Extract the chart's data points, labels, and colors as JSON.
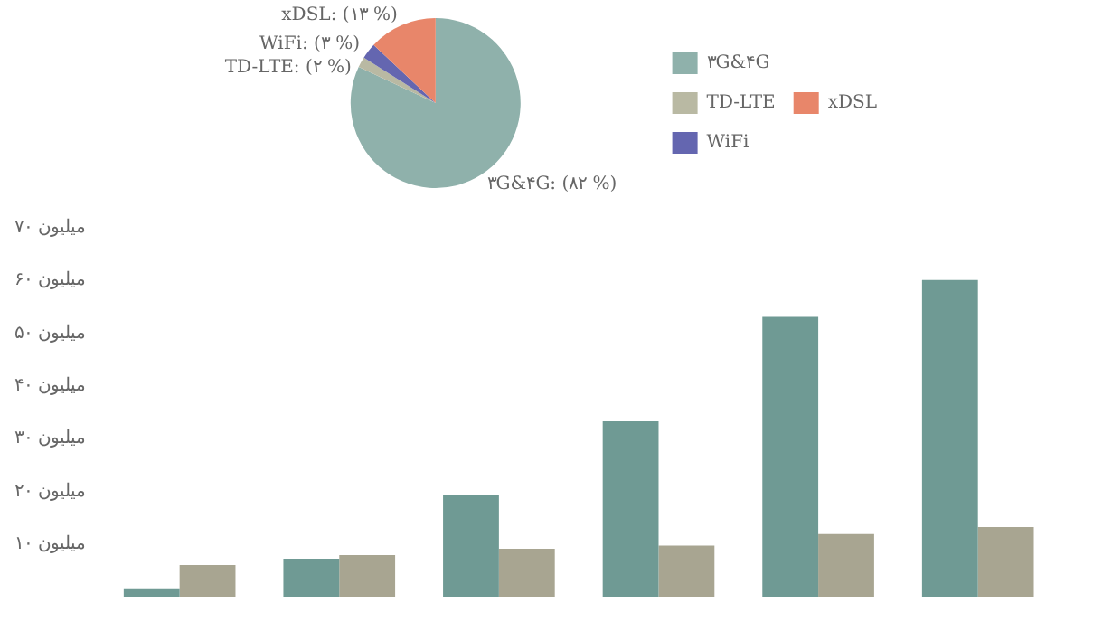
{
  "chart_data": [
    {
      "type": "pie",
      "categories": [
        "۳G&۴G",
        "TD-LTE",
        "WiFi",
        "xDSL"
      ],
      "values": [
        82,
        2,
        3,
        13
      ],
      "colors": [
        "#8fb1ab",
        "#b9b9a3",
        "#6466b0",
        "#e8866a"
      ],
      "value_labels": [
        "۳G&۴G: (۸۲ %)",
        "TD-LTE: (۲ %)",
        "WiFi: (۳ %)",
        "xDSL: (۱۳ %)"
      ],
      "legend": "right"
    },
    {
      "type": "bar",
      "categories": [
        null,
        null,
        null,
        null,
        null,
        null
      ],
      "series": [
        {
          "color": "#6f9a94",
          "values": [
            1.6,
            7.2,
            19.2,
            33.3,
            53.1,
            60.1
          ]
        },
        {
          "color": "#a8a591",
          "values": [
            6.0,
            7.9,
            9.1,
            9.7,
            11.9,
            13.2
          ]
        }
      ],
      "ylim": [
        0,
        70
      ],
      "yticks": [
        {
          "value": 10,
          "label": "۱۰ میلیون"
        },
        {
          "value": 20,
          "label": "۲۰ میلیون"
        },
        {
          "value": 30,
          "label": "۳۰ میلیون"
        },
        {
          "value": 40,
          "label": "۴۰ میلیون"
        },
        {
          "value": 50,
          "label": "۵۰ میلیون"
        },
        {
          "value": 60,
          "label": "۶۰ میلیون"
        },
        {
          "value": 70,
          "label": "۷۰ میلیون"
        }
      ],
      "grid": false,
      "legend": false
    }
  ]
}
